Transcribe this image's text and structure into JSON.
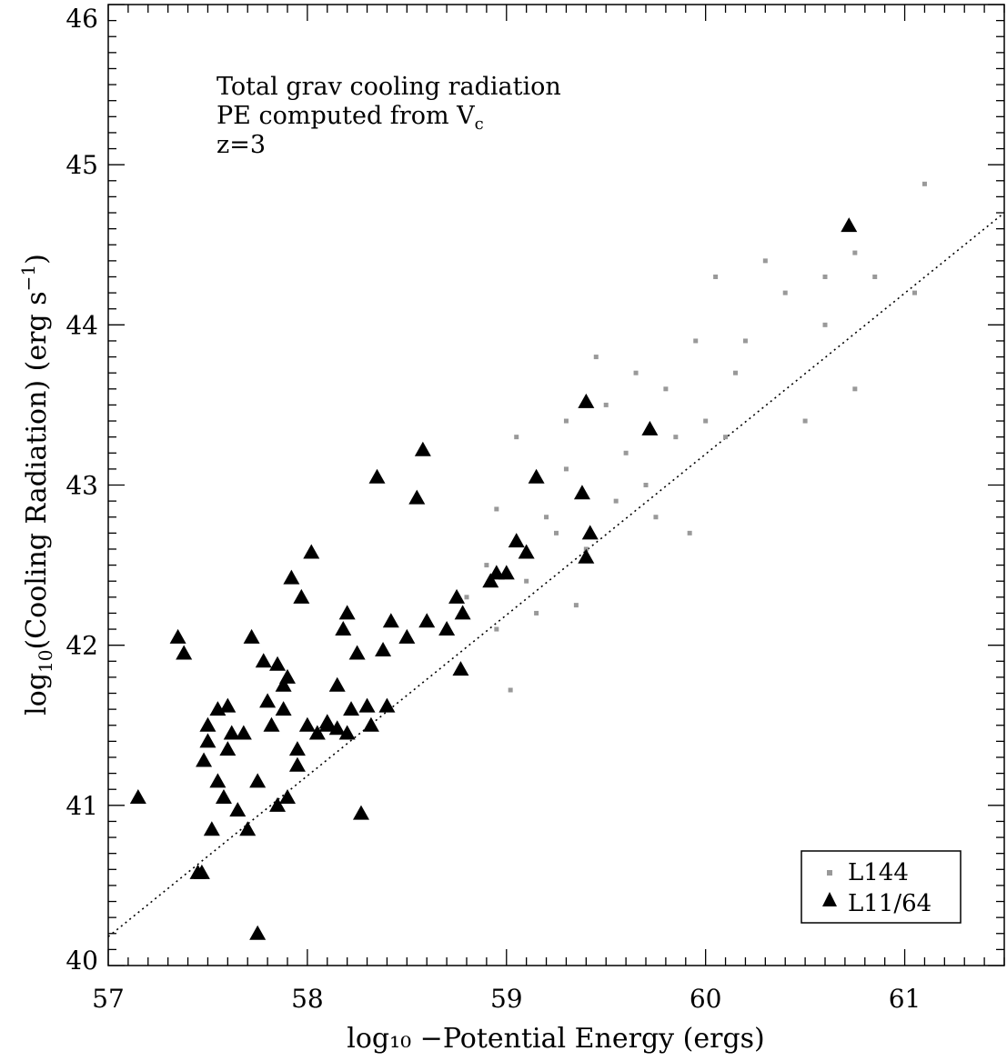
{
  "chart_data": {
    "type": "scatter",
    "xlabel": "log₁₀ −Potential Energy (ergs)",
    "ylabel": {
      "pre": "log",
      "sub": "10",
      "mid": "(Cooling Radiation) (erg s",
      "sup": "−1",
      "post": ")"
    },
    "xlim": [
      57,
      61.5
    ],
    "ylim": [
      40,
      46
    ],
    "x_ticks": [
      "57",
      "58",
      "59",
      "60",
      "61"
    ],
    "y_ticks": [
      "40",
      "41",
      "42",
      "43",
      "44",
      "45",
      "46"
    ],
    "annotations": [
      "Total grav cooling radiation",
      "PE computed from V",
      "z=3"
    ],
    "annotation_sub": "c",
    "reference_line": {
      "style": "dotted",
      "points": [
        [
          57,
          40.18
        ],
        [
          61.5,
          44.7
        ]
      ]
    },
    "legend": {
      "position": "bottom-right"
    },
    "series": [
      {
        "name": "L144",
        "marker": "square",
        "color": "#999999",
        "points": [
          [
            59.05,
            43.3
          ],
          [
            59.3,
            43.1
          ],
          [
            59.5,
            43.5
          ],
          [
            59.2,
            42.8
          ],
          [
            58.95,
            42.85
          ],
          [
            59.6,
            43.2
          ],
          [
            59.8,
            43.6
          ],
          [
            60.0,
            43.4
          ],
          [
            59.4,
            42.6
          ],
          [
            59.1,
            42.4
          ],
          [
            58.9,
            42.5
          ],
          [
            59.7,
            43.0
          ],
          [
            60.2,
            43.9
          ],
          [
            60.4,
            44.2
          ],
          [
            60.6,
            44.3
          ],
          [
            60.75,
            44.45
          ],
          [
            61.1,
            44.88
          ],
          [
            60.3,
            44.4
          ],
          [
            60.05,
            44.3
          ],
          [
            59.95,
            43.9
          ],
          [
            60.15,
            43.7
          ],
          [
            59.85,
            43.3
          ],
          [
            59.55,
            42.9
          ],
          [
            59.25,
            42.7
          ],
          [
            59.15,
            42.2
          ],
          [
            59.02,
            41.72
          ],
          [
            59.35,
            42.25
          ],
          [
            60.5,
            43.4
          ],
          [
            60.75,
            43.6
          ],
          [
            61.05,
            44.2
          ],
          [
            59.92,
            42.7
          ],
          [
            58.95,
            42.1
          ],
          [
            58.8,
            42.3
          ],
          [
            59.45,
            43.8
          ],
          [
            59.65,
            43.7
          ],
          [
            60.1,
            43.3
          ],
          [
            60.6,
            44.0
          ],
          [
            60.85,
            44.3
          ],
          [
            59.3,
            43.4
          ],
          [
            59.75,
            42.8
          ]
        ]
      },
      {
        "name": "L11/64",
        "marker": "triangle",
        "color": "#000000",
        "points": [
          [
            57.15,
            41.05
          ],
          [
            57.35,
            42.05
          ],
          [
            57.38,
            41.95
          ],
          [
            57.45,
            40.58
          ],
          [
            57.47,
            40.58
          ],
          [
            57.48,
            41.28
          ],
          [
            57.5,
            41.5
          ],
          [
            57.52,
            40.85
          ],
          [
            57.55,
            41.6
          ],
          [
            57.58,
            41.05
          ],
          [
            57.6,
            41.62
          ],
          [
            57.62,
            41.45
          ],
          [
            57.65,
            40.97
          ],
          [
            57.68,
            41.45
          ],
          [
            57.7,
            40.85
          ],
          [
            57.72,
            42.05
          ],
          [
            57.75,
            41.15
          ],
          [
            57.78,
            41.9
          ],
          [
            57.8,
            41.65
          ],
          [
            57.82,
            41.5
          ],
          [
            57.85,
            41.88
          ],
          [
            57.88,
            41.6
          ],
          [
            57.9,
            41.8
          ],
          [
            57.92,
            42.42
          ],
          [
            57.95,
            41.35
          ],
          [
            57.97,
            42.3
          ],
          [
            58.0,
            41.5
          ],
          [
            58.02,
            42.58
          ],
          [
            58.05,
            41.45
          ],
          [
            58.1,
            41.5
          ],
          [
            58.15,
            41.75
          ],
          [
            58.18,
            42.1
          ],
          [
            58.2,
            41.45
          ],
          [
            58.22,
            41.6
          ],
          [
            58.25,
            41.95
          ],
          [
            58.27,
            40.95
          ],
          [
            58.3,
            41.62
          ],
          [
            58.32,
            41.5
          ],
          [
            58.35,
            43.05
          ],
          [
            58.38,
            41.97
          ],
          [
            58.4,
            41.62
          ],
          [
            58.42,
            42.15
          ],
          [
            58.5,
            42.05
          ],
          [
            58.55,
            42.92
          ],
          [
            58.58,
            43.22
          ],
          [
            58.6,
            42.15
          ],
          [
            58.7,
            42.1
          ],
          [
            58.75,
            42.3
          ],
          [
            58.77,
            41.85
          ],
          [
            58.78,
            42.2
          ],
          [
            58.92,
            42.4
          ],
          [
            58.95,
            42.45
          ],
          [
            59.0,
            42.45
          ],
          [
            59.05,
            42.65
          ],
          [
            59.1,
            42.58
          ],
          [
            59.15,
            43.05
          ],
          [
            59.38,
            42.95
          ],
          [
            59.4,
            42.55
          ],
          [
            59.42,
            42.7
          ],
          [
            59.4,
            43.52
          ],
          [
            59.72,
            43.35
          ],
          [
            60.72,
            44.62
          ],
          [
            57.75,
            40.2
          ],
          [
            57.5,
            41.4
          ],
          [
            57.55,
            41.15
          ],
          [
            57.6,
            41.35
          ],
          [
            57.85,
            41.0
          ],
          [
            57.9,
            41.05
          ],
          [
            57.88,
            41.75
          ],
          [
            57.95,
            41.25
          ],
          [
            58.1,
            41.52
          ],
          [
            58.2,
            42.2
          ],
          [
            58.15,
            41.48
          ]
        ]
      }
    ]
  }
}
